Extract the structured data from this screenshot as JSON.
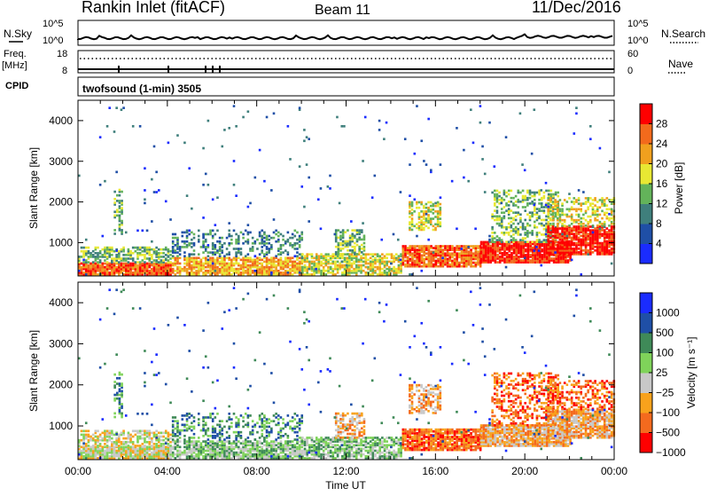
{
  "header": {
    "station": "Rankin Inlet (fitACF)",
    "beam": "Beam 11",
    "date": "11/Dec/2016"
  },
  "noise_panel": {
    "left_label": "N.Sky",
    "right_label": "N.Search",
    "left_ticks": [
      "10^5",
      "10^0"
    ],
    "right_ticks": [
      "10^5",
      "10^0"
    ]
  },
  "freq_panel": {
    "left_label": "Freq.",
    "left_unit": "[MHz]",
    "right_label": "Nave",
    "left_ticks": [
      "18",
      "8"
    ],
    "right_ticks": [
      "60",
      "0"
    ]
  },
  "cpid": {
    "label": "CPID",
    "value": "twofsound (1-min) 3505"
  },
  "colors": {
    "power": [
      "#1a2cff",
      "#1f4fa6",
      "#3f7f7c",
      "#63b35a",
      "#e8e833",
      "#f0a01e",
      "#f26a1c",
      "#ff0000"
    ],
    "velocity": [
      "#ff0000",
      "#f46a1e",
      "#f8a21c",
      "#c8c8c8",
      "#7fd35a",
      "#3f8a58",
      "#1f4fa6",
      "#1a2cff"
    ]
  },
  "chart_data": [
    {
      "type": "heatmap",
      "panel": "power",
      "ylabel": "Slant Range [km]",
      "yticks": [
        "1000",
        "2000",
        "3000",
        "4000"
      ],
      "ylim": [
        180,
        4500
      ],
      "xlim_hours": [
        0,
        24
      ],
      "xtick_labels": [
        "00:00",
        "04:00",
        "08:00",
        "12:00",
        "16:00",
        "20:00",
        "00:00"
      ],
      "colorbar": {
        "label": "Power [dB]",
        "ticks": [
          "4",
          "8",
          "12",
          "16",
          "20",
          "24",
          "28"
        ],
        "range": [
          0,
          30
        ]
      }
    },
    {
      "type": "heatmap",
      "panel": "velocity",
      "ylabel": "Slant Range [km]",
      "yticks": [
        "1000",
        "2000",
        "3000",
        "4000"
      ],
      "ylim": [
        180,
        4500
      ],
      "xlim_hours": [
        0,
        24
      ],
      "xtick_labels": [
        "00:00",
        "04:00",
        "08:00",
        "12:00",
        "16:00",
        "20:00",
        "00:00"
      ],
      "xlabel": "Time UT",
      "colorbar": {
        "label": "Velocity [m s⁻¹]",
        "ticks": [
          "1000",
          "500",
          "100",
          "25",
          "−25",
          "−100",
          "−500",
          "−1000"
        ]
      }
    }
  ]
}
